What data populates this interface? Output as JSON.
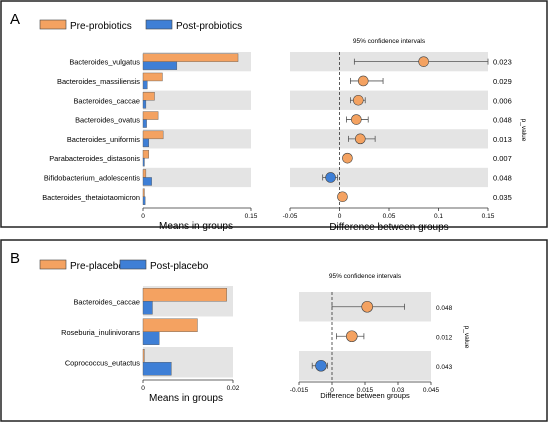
{
  "colors": {
    "pre": "#F4A261",
    "post": "#3E7FD6",
    "band": "#E4E4E4",
    "frame": "#222222"
  },
  "panels": [
    {
      "label": "A",
      "legend": [
        "Pre-probiotics",
        "Post-probiotics"
      ]
    },
    {
      "label": "B",
      "legend": [
        "Pre-placebo",
        "Post-placebo"
      ]
    }
  ],
  "chart_data": [
    {
      "type": "bar",
      "panel": "A",
      "categories": [
        "Bacteroides_vulgatus",
        "Bacteroides_massiliensis",
        "Bacteroides_caccae",
        "Bacteroides_ovatus",
        "Bacteroides_uniformis",
        "Parabacteroides_distasonis",
        "Bifidobacterium_adolescentis",
        "Bacteroides_thetaiotaomicron"
      ],
      "series": [
        {
          "name": "Pre-probiotics",
          "values": [
            0.132,
            0.027,
            0.016,
            0.021,
            0.028,
            0.008,
            0.004,
            0.002
          ]
        },
        {
          "name": "Post-probiotics",
          "values": [
            0.047,
            0.006,
            0.004,
            0.005,
            0.008,
            0.002,
            0.012,
            0.003
          ]
        }
      ],
      "xlabel": "Means in groups",
      "xlim": [
        0,
        0.15
      ],
      "xticks": [
        "0",
        "0.15"
      ],
      "legend": "top-left"
    },
    {
      "type": "scatter",
      "panel": "A",
      "title": "95% confidence intervals",
      "categories": [
        "Bacteroides_vulgatus",
        "Bacteroides_massiliensis",
        "Bacteroides_caccae",
        "Bacteroides_ovatus",
        "Bacteroides_uniformis",
        "Parabacteroides_distasonis",
        "Bifidobacterium_adolescentis",
        "Bacteroides_thetaiotaomicron"
      ],
      "estimate": [
        0.085,
        0.024,
        0.019,
        0.017,
        0.021,
        0.008,
        -0.009,
        0.003
      ],
      "ci_low": [
        0.015,
        0.011,
        0.011,
        0.007,
        0.009,
        0.005,
        -0.017,
        0.001
      ],
      "ci_high": [
        0.15,
        0.044,
        0.026,
        0.029,
        0.036,
        0.012,
        -0.002,
        0.006
      ],
      "higher_group": [
        "Pre-probiotics",
        "Pre-probiotics",
        "Pre-probiotics",
        "Pre-probiotics",
        "Pre-probiotics",
        "Pre-probiotics",
        "Post-probiotics",
        "Pre-probiotics"
      ],
      "p_values": [
        "0.023",
        "0.029",
        "0.006",
        "0.048",
        "0.013",
        "0.007",
        "0.048",
        "0.035"
      ],
      "p_axis_label": "p_value",
      "xlabel": "Difference between groups",
      "xlim": [
        -0.05,
        0.15
      ],
      "xticks": [
        "-0.05",
        "0",
        "0.05",
        "0.1",
        "0.15"
      ]
    },
    {
      "type": "bar",
      "panel": "B",
      "categories": [
        "Bacteroides_caccae",
        "Roseburia_inulinivorans",
        "Coprococcus_eutactus"
      ],
      "series": [
        {
          "name": "Pre-placebo",
          "values": [
            0.0186,
            0.0121,
            0.0003
          ]
        },
        {
          "name": "Post-placebo",
          "values": [
            0.0021,
            0.0036,
            0.0063
          ]
        }
      ],
      "xlabel": "Means in groups",
      "xlim": [
        0,
        0.02
      ],
      "xticks": [
        "0",
        "0.02"
      ],
      "legend": "top-left"
    },
    {
      "type": "scatter",
      "panel": "B",
      "title": "95% confidence intervals",
      "categories": [
        "Bacteroides_caccae",
        "Roseburia_inulinivorans",
        "Coprococcus_eutactus"
      ],
      "estimate": [
        0.016,
        0.009,
        -0.005
      ],
      "ci_low": [
        0.0,
        0.002,
        -0.009
      ],
      "ci_high": [
        0.033,
        0.0145,
        -0.002
      ],
      "higher_group": [
        "Pre-placebo",
        "Pre-placebo",
        "Post-placebo"
      ],
      "p_values": [
        "0.048",
        "0.012",
        "0.043"
      ],
      "p_axis_label": "p_value",
      "xlabel": "Difference between groups",
      "xlim": [
        -0.015,
        0.045
      ],
      "xticks": [
        "-0.015",
        "0",
        "0.015",
        "0.03",
        "0.045"
      ]
    }
  ]
}
